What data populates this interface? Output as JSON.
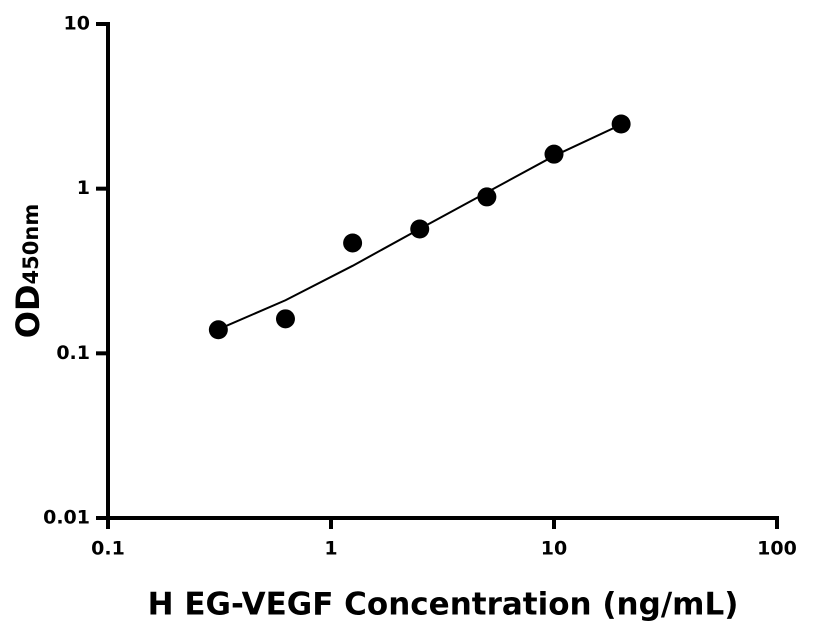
{
  "chart_data": {
    "type": "scatter",
    "xlabel": "H EG-VEGF Concentration (ng/mL)",
    "ylabel": "OD",
    "ylabel_sub": "450nm",
    "x": [
      0.3125,
      0.625,
      1.25,
      2.5,
      5,
      10,
      20
    ],
    "series": [
      {
        "color": "#000000",
        "mode": "markers",
        "values": [
          0.139,
          0.162,
          0.468,
          0.569,
          0.891,
          1.62,
          2.47
        ]
      },
      {
        "color": "#000000",
        "mode": "line",
        "values": [
          0.14,
          0.21,
          0.34,
          0.57,
          0.95,
          1.58,
          2.45
        ]
      }
    ],
    "xscale": "log",
    "yscale": "log",
    "xlim": [
      0.1,
      100
    ],
    "ylim": [
      0.01,
      10
    ],
    "xticks": [
      0.1,
      1,
      10,
      100
    ],
    "yticks": [
      0.01,
      0.1,
      1,
      10
    ]
  }
}
